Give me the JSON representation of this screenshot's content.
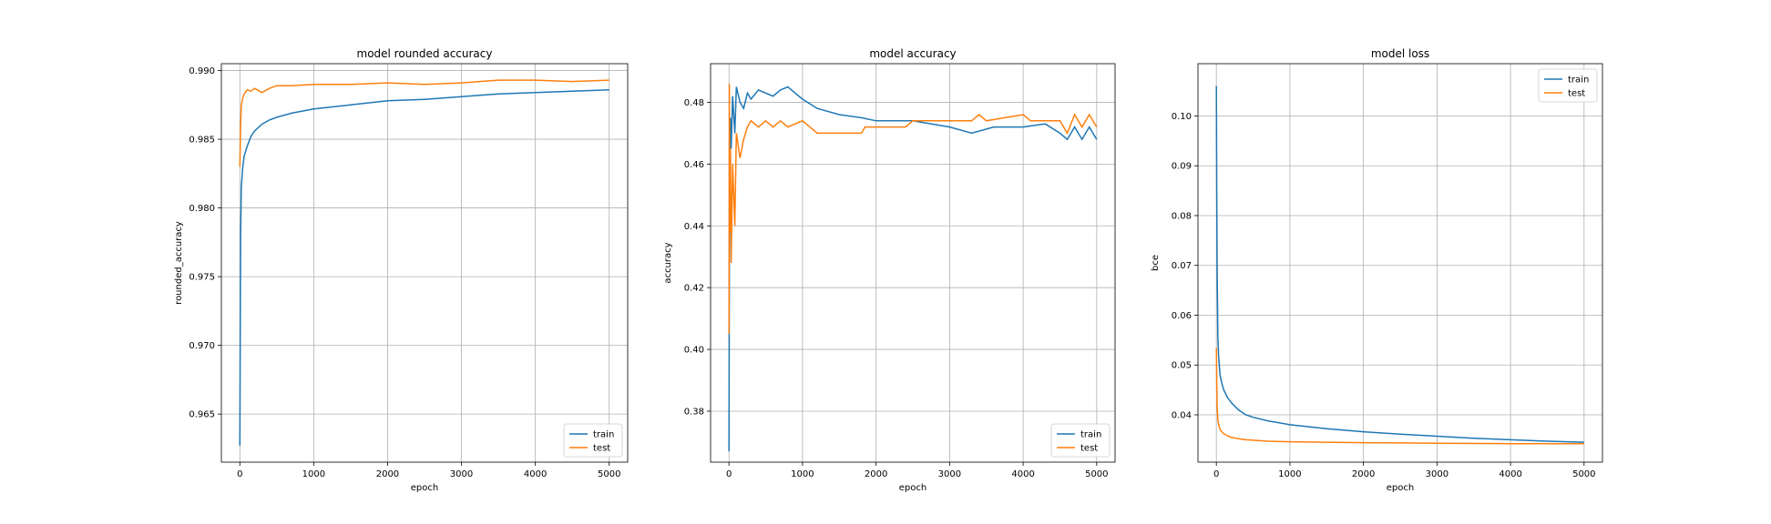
{
  "colors": {
    "train": "#1f77b4",
    "test": "#ff7f0e",
    "grid": "#b0b0b0"
  },
  "chart_data": [
    {
      "type": "line",
      "title": "model rounded accuracy",
      "xlabel": "epoch",
      "ylabel": "rounded_accuracy",
      "xlim": [
        -250,
        5250
      ],
      "ylim": [
        0.9615,
        0.9905
      ],
      "xticks": [
        "0",
        "1000",
        "2000",
        "3000",
        "4000",
        "5000"
      ],
      "yticks": [
        "0.965",
        "0.970",
        "0.975",
        "0.980",
        "0.985",
        "0.990"
      ],
      "grid": true,
      "legend": "lower-right",
      "series": [
        {
          "name": "train",
          "x": [
            0,
            5,
            10,
            20,
            40,
            60,
            100,
            150,
            200,
            300,
            400,
            500,
            700,
            1000,
            1500,
            2000,
            2500,
            3000,
            3500,
            4000,
            4500,
            5000
          ],
          "y": [
            0.9627,
            0.9705,
            0.978,
            0.9815,
            0.983,
            0.9838,
            0.9845,
            0.9852,
            0.9856,
            0.9861,
            0.9864,
            0.9866,
            0.9869,
            0.9872,
            0.9875,
            0.9878,
            0.9879,
            0.9881,
            0.9883,
            0.9884,
            0.9885,
            0.9886
          ]
        },
        {
          "name": "test",
          "x": [
            0,
            10,
            20,
            40,
            60,
            100,
            150,
            200,
            300,
            400,
            500,
            700,
            1000,
            1500,
            2000,
            2500,
            3000,
            3500,
            4000,
            4500,
            5000
          ],
          "y": [
            0.983,
            0.986,
            0.9875,
            0.988,
            0.9883,
            0.9886,
            0.9885,
            0.9887,
            0.9884,
            0.9887,
            0.9889,
            0.9889,
            0.989,
            0.989,
            0.9891,
            0.989,
            0.9891,
            0.9893,
            0.9893,
            0.9892,
            0.9893
          ]
        }
      ]
    },
    {
      "type": "line",
      "title": "model accuracy",
      "xlabel": "epoch",
      "ylabel": "accuracy",
      "xlim": [
        -250,
        5250
      ],
      "ylim": [
        0.3635,
        0.4925
      ],
      "xticks": [
        "0",
        "1000",
        "2000",
        "3000",
        "4000",
        "5000"
      ],
      "yticks": [
        "0.38",
        "0.40",
        "0.42",
        "0.44",
        "0.46",
        "0.48"
      ],
      "grid": true,
      "legend": "lower-right",
      "series": [
        {
          "name": "train",
          "x": [
            0,
            5,
            10,
            20,
            30,
            50,
            80,
            100,
            150,
            200,
            250,
            300,
            400,
            500,
            600,
            700,
            800,
            900,
            1000,
            1200,
            1500,
            1800,
            2000,
            2500,
            3000,
            3300,
            3600,
            4000,
            4300,
            4500,
            4600,
            4700,
            4800,
            4900,
            5000
          ],
          "y": [
            0.367,
            0.43,
            0.46,
            0.475,
            0.465,
            0.482,
            0.47,
            0.485,
            0.48,
            0.478,
            0.483,
            0.481,
            0.484,
            0.483,
            0.482,
            0.484,
            0.485,
            0.483,
            0.481,
            0.478,
            0.476,
            0.475,
            0.474,
            0.474,
            0.472,
            0.47,
            0.472,
            0.472,
            0.473,
            0.47,
            0.468,
            0.472,
            0.468,
            0.472,
            0.468
          ]
        },
        {
          "name": "test",
          "x": [
            0,
            5,
            10,
            20,
            30,
            50,
            80,
            100,
            150,
            200,
            250,
            300,
            400,
            500,
            600,
            700,
            800,
            1000,
            1100,
            1200,
            1500,
            1800,
            1850,
            2000,
            2400,
            2500,
            3000,
            3300,
            3400,
            3500,
            4000,
            4100,
            4200,
            4500,
            4600,
            4700,
            4800,
            4900,
            5000
          ],
          "y": [
            0.405,
            0.486,
            0.438,
            0.465,
            0.428,
            0.46,
            0.44,
            0.47,
            0.462,
            0.468,
            0.472,
            0.474,
            0.472,
            0.474,
            0.472,
            0.474,
            0.472,
            0.474,
            0.472,
            0.47,
            0.47,
            0.47,
            0.472,
            0.472,
            0.472,
            0.474,
            0.474,
            0.474,
            0.476,
            0.474,
            0.476,
            0.474,
            0.474,
            0.474,
            0.47,
            0.476,
            0.472,
            0.476,
            0.472
          ]
        }
      ]
    },
    {
      "type": "line",
      "title": "model loss",
      "xlabel": "epoch",
      "ylabel": "bce",
      "xlim": [
        -250,
        5250
      ],
      "ylim": [
        0.0305,
        0.1105
      ],
      "xticks": [
        "0",
        "1000",
        "2000",
        "3000",
        "4000",
        "5000"
      ],
      "yticks": [
        "0.04",
        "0.05",
        "0.06",
        "0.07",
        "0.08",
        "0.09",
        "0.10"
      ],
      "grid": true,
      "legend": "upper-right",
      "series": [
        {
          "name": "train",
          "x": [
            0,
            5,
            10,
            20,
            30,
            50,
            80,
            100,
            150,
            200,
            300,
            400,
            500,
            700,
            1000,
            1500,
            2000,
            2500,
            3000,
            3500,
            4000,
            4500,
            5000
          ],
          "y": [
            0.106,
            0.085,
            0.07,
            0.056,
            0.052,
            0.048,
            0.046,
            0.045,
            0.0435,
            0.0425,
            0.041,
            0.04,
            0.0395,
            0.0388,
            0.038,
            0.0372,
            0.0366,
            0.0361,
            0.0357,
            0.0353,
            0.035,
            0.0347,
            0.0345
          ]
        },
        {
          "name": "test",
          "x": [
            0,
            5,
            10,
            20,
            40,
            60,
            100,
            150,
            200,
            300,
            400,
            500,
            700,
            1000,
            1500,
            2000,
            3000,
            4000,
            5000
          ],
          "y": [
            0.0535,
            0.047,
            0.042,
            0.039,
            0.0375,
            0.0368,
            0.0362,
            0.0358,
            0.0355,
            0.0352,
            0.035,
            0.0349,
            0.0347,
            0.0346,
            0.0345,
            0.0344,
            0.0343,
            0.0342,
            0.0342
          ]
        }
      ]
    }
  ]
}
